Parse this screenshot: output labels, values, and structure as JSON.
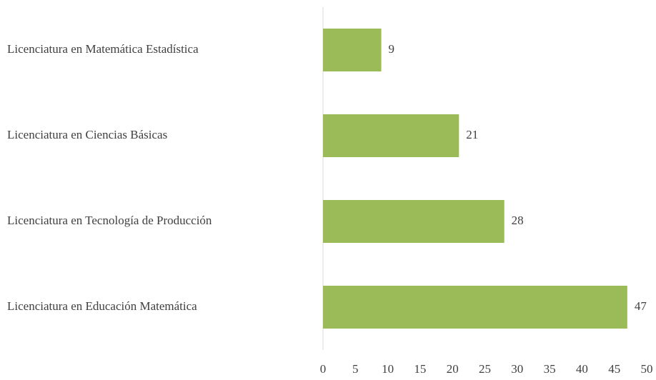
{
  "chart_data": {
    "type": "barh",
    "categories": [
      "Licenciatura en Matemática Estadística",
      "Licenciatura en Ciencias Básicas",
      "Licenciatura en Tecnología de Producción",
      "Licenciatura en Educación Matemática"
    ],
    "values": [
      9,
      21,
      28,
      47
    ],
    "color": "#9bbb59",
    "xlim": [
      0,
      50
    ],
    "xticks": [
      0,
      5,
      10,
      15,
      20,
      25,
      30,
      35,
      40,
      45,
      50
    ],
    "grid": false
  }
}
